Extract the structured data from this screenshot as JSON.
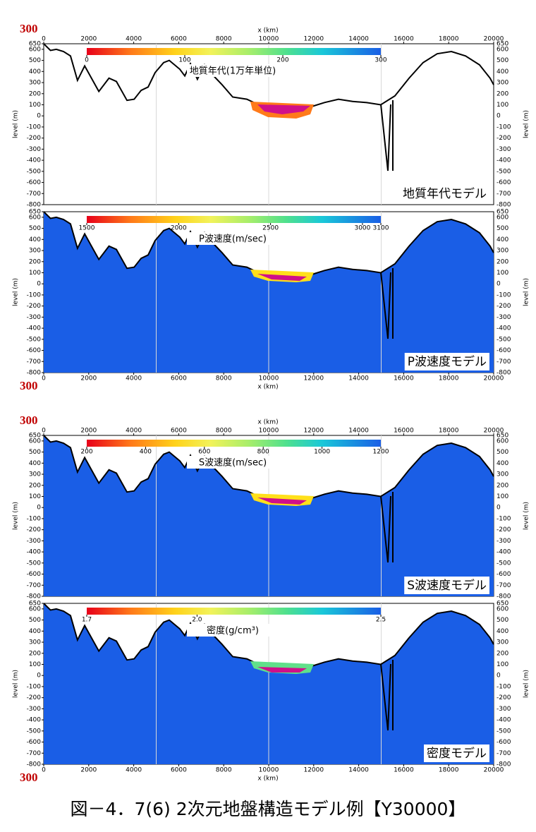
{
  "caption": "図－4．7(6) 2次元地盤構造モデル例【Y30000】",
  "chart_data": [
    {
      "type": "area",
      "title": "地質年代モデル",
      "corner_label": "300",
      "xaxis": "top",
      "fill": null,
      "line_color": "#000000",
      "xlabel": "x (km)",
      "ylabel": "level (m)",
      "colorbar": {
        "label": "地質年代(1万年単位)",
        "range": [
          0,
          300
        ],
        "ticks": [
          0,
          100,
          200,
          300
        ]
      },
      "xlim": [
        0,
        20000
      ],
      "ylim": [
        -800,
        650
      ],
      "xticks": [
        0,
        2000,
        4000,
        6000,
        8000,
        10000,
        12000,
        14000,
        16000,
        18000,
        20000
      ],
      "xgrid": [
        5000,
        10000,
        15000
      ],
      "yticks": [
        650,
        600,
        500,
        400,
        300,
        200,
        100,
        0,
        -100,
        -200,
        -300,
        -400,
        -500,
        -600,
        -700,
        -800
      ],
      "x": [
        0,
        300,
        560,
        880,
        1190,
        1500,
        1820,
        2450,
        2900,
        3230,
        3700,
        4020,
        4330,
        4640,
        4950,
        5330,
        5580,
        6050,
        6270,
        6520,
        6830,
        7150,
        7460,
        7930,
        8400,
        9030,
        9650,
        10600,
        11850,
        12480,
        13100,
        13730,
        14360,
        14980,
        15610,
        16240,
        16860,
        17490,
        18120,
        18750,
        19370,
        19840,
        20000
      ],
      "values": [
        650,
        590,
        600,
        580,
        540,
        320,
        450,
        220,
        340,
        310,
        140,
        150,
        230,
        260,
        390,
        480,
        500,
        420,
        360,
        470,
        330,
        460,
        380,
        280,
        170,
        150,
        90,
        80,
        80,
        120,
        150,
        130,
        120,
        100,
        180,
        340,
        480,
        560,
        580,
        540,
        460,
        340,
        280
      ]
    },
    {
      "type": "area",
      "title": "P波速度モデル",
      "corner_label": "300",
      "xaxis": "bottom",
      "fill": "#1a5ee6",
      "line_color": "#000000",
      "xlabel": "x (km)",
      "ylabel": "level (m)",
      "colorbar": {
        "label": "P波速度(m/sec)",
        "range": [
          1500,
          3100
        ],
        "ticks": [
          1500,
          2000,
          2500,
          3000,
          3100
        ]
      },
      "xlim": [
        0,
        20000
      ],
      "ylim": [
        -800,
        650
      ],
      "xticks": [
        0,
        2000,
        4000,
        6000,
        8000,
        10000,
        12000,
        14000,
        16000,
        18000,
        20000
      ],
      "xgrid": [
        5000,
        10000,
        15000
      ],
      "yticks": [
        650,
        600,
        500,
        400,
        300,
        200,
        100,
        0,
        -100,
        -200,
        -300,
        -400,
        -500,
        -600,
        -700,
        -800
      ],
      "x": [
        0,
        300,
        560,
        880,
        1190,
        1500,
        1820,
        2450,
        2900,
        3230,
        3700,
        4020,
        4330,
        4640,
        4950,
        5330,
        5580,
        6050,
        6270,
        6520,
        6830,
        7150,
        7460,
        7930,
        8400,
        9030,
        9650,
        10600,
        11850,
        12480,
        13100,
        13730,
        14360,
        14980,
        15610,
        16240,
        16860,
        17490,
        18120,
        18750,
        19370,
        19840,
        20000
      ],
      "values": [
        650,
        590,
        600,
        580,
        540,
        320,
        450,
        220,
        340,
        310,
        140,
        150,
        230,
        260,
        390,
        480,
        500,
        420,
        360,
        470,
        330,
        460,
        380,
        280,
        170,
        150,
        90,
        80,
        80,
        120,
        150,
        130,
        120,
        100,
        180,
        340,
        480,
        560,
        580,
        540,
        460,
        340,
        280
      ]
    },
    {
      "type": "area",
      "title": "S波速度モデル",
      "corner_label": "300",
      "xaxis": "top",
      "fill": "#1a5ee6",
      "line_color": "#000000",
      "xlabel": "x (km)",
      "ylabel": "level (m)",
      "colorbar": {
        "label": "S波速度(m/sec)",
        "range": [
          200,
          1200
        ],
        "ticks": [
          200,
          400,
          600,
          800,
          1000,
          1200
        ]
      },
      "xlim": [
        0,
        20000
      ],
      "ylim": [
        -800,
        650
      ],
      "xticks": [
        0,
        2000,
        4000,
        6000,
        8000,
        10000,
        12000,
        14000,
        16000,
        18000,
        20000
      ],
      "xgrid": [
        5000,
        10000,
        15000
      ],
      "yticks": [
        650,
        600,
        500,
        400,
        300,
        200,
        100,
        0,
        -100,
        -200,
        -300,
        -400,
        -500,
        -600,
        -700,
        -800
      ],
      "x": [
        0,
        300,
        560,
        880,
        1190,
        1500,
        1820,
        2450,
        2900,
        3230,
        3700,
        4020,
        4330,
        4640,
        4950,
        5330,
        5580,
        6050,
        6270,
        6520,
        6830,
        7150,
        7460,
        7930,
        8400,
        9030,
        9650,
        10600,
        11850,
        12480,
        13100,
        13730,
        14360,
        14980,
        15610,
        16240,
        16860,
        17490,
        18120,
        18750,
        19370,
        19840,
        20000
      ],
      "values": [
        650,
        590,
        600,
        580,
        540,
        320,
        450,
        220,
        340,
        310,
        140,
        150,
        230,
        260,
        390,
        480,
        500,
        420,
        360,
        470,
        330,
        460,
        380,
        280,
        170,
        150,
        90,
        80,
        80,
        120,
        150,
        130,
        120,
        100,
        180,
        340,
        480,
        560,
        580,
        540,
        460,
        340,
        280
      ]
    },
    {
      "type": "area",
      "title": "密度モデル",
      "corner_label": "300",
      "xaxis": "bottom",
      "fill": "#1a5ee6",
      "line_color": "#000000",
      "xlabel": "x (km)",
      "ylabel": "level (m)",
      "colorbar": {
        "label": "密度(g/cm³)",
        "range": [
          1.7,
          2.5
        ],
        "ticks": [
          1.7,
          {
            "value": 2,
            "label": "2.0"
          },
          2.5
        ]
      },
      "xlim": [
        0,
        20000
      ],
      "ylim": [
        -800,
        650
      ],
      "xticks": [
        0,
        2000,
        4000,
        6000,
        8000,
        10000,
        12000,
        14000,
        16000,
        18000,
        20000
      ],
      "xgrid": [
        5000,
        10000,
        15000
      ],
      "yticks": [
        650,
        600,
        500,
        400,
        300,
        200,
        100,
        0,
        -100,
        -200,
        -300,
        -400,
        -500,
        -600,
        -700,
        -800
      ],
      "x": [
        0,
        300,
        560,
        880,
        1190,
        1500,
        1820,
        2450,
        2900,
        3230,
        3700,
        4020,
        4330,
        4640,
        4950,
        5330,
        5580,
        6050,
        6270,
        6520,
        6830,
        7150,
        7460,
        7930,
        8400,
        9030,
        9650,
        10600,
        11850,
        12480,
        13100,
        13730,
        14360,
        14980,
        15610,
        16240,
        16860,
        17490,
        18120,
        18750,
        19370,
        19840,
        20000
      ],
      "values": [
        650,
        590,
        600,
        580,
        540,
        320,
        450,
        220,
        340,
        310,
        140,
        150,
        230,
        260,
        390,
        480,
        500,
        420,
        360,
        470,
        330,
        460,
        380,
        280,
        170,
        150,
        90,
        80,
        80,
        120,
        150,
        130,
        120,
        100,
        180,
        340,
        480,
        560,
        580,
        540,
        460,
        340,
        280
      ]
    }
  ]
}
